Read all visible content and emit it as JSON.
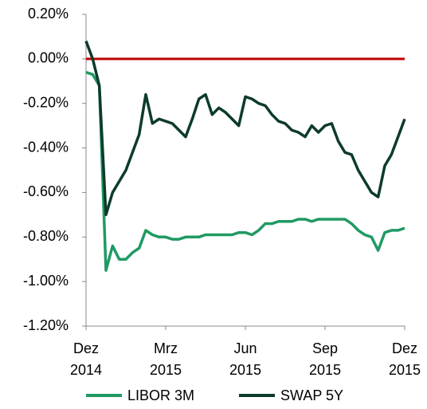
{
  "chart_data": {
    "type": "line",
    "x": [
      0,
      0.25,
      0.5,
      0.75,
      1,
      1.25,
      1.5,
      1.75,
      2,
      2.25,
      2.5,
      2.75,
      3,
      3.25,
      3.5,
      3.75,
      4,
      4.25,
      4.5,
      4.75,
      5,
      5.25,
      5.5,
      5.75,
      6,
      6.25,
      6.5,
      6.75,
      7,
      7.25,
      7.5,
      7.75,
      8,
      8.25,
      8.5,
      8.75,
      9,
      9.25,
      9.5,
      9.75,
      10,
      10.25,
      10.5,
      10.75,
      11,
      11.25,
      11.5,
      11.75,
      12
    ],
    "series": [
      {
        "name": "LIBOR 3M",
        "color": "#1f9a63",
        "values": [
          -0.06,
          -0.07,
          -0.12,
          -0.95,
          -0.84,
          -0.9,
          -0.9,
          -0.87,
          -0.85,
          -0.77,
          -0.79,
          -0.8,
          -0.8,
          -0.81,
          -0.81,
          -0.8,
          -0.8,
          -0.8,
          -0.79,
          -0.79,
          -0.79,
          -0.79,
          -0.79,
          -0.78,
          -0.78,
          -0.79,
          -0.77,
          -0.74,
          -0.74,
          -0.73,
          -0.73,
          -0.73,
          -0.72,
          -0.72,
          -0.73,
          -0.72,
          -0.72,
          -0.72,
          -0.72,
          -0.72,
          -0.74,
          -0.77,
          -0.79,
          -0.8,
          -0.86,
          -0.78,
          -0.77,
          -0.77,
          -0.76
        ]
      },
      {
        "name": "SWAP 5Y",
        "color": "#0d3b2a",
        "values": [
          0.08,
          0.0,
          -0.12,
          -0.7,
          -0.6,
          -0.55,
          -0.5,
          -0.42,
          -0.34,
          -0.16,
          -0.29,
          -0.27,
          -0.28,
          -0.29,
          -0.32,
          -0.35,
          -0.27,
          -0.18,
          -0.16,
          -0.25,
          -0.22,
          -0.24,
          -0.27,
          -0.3,
          -0.17,
          -0.18,
          -0.2,
          -0.21,
          -0.25,
          -0.28,
          -0.29,
          -0.32,
          -0.33,
          -0.35,
          -0.3,
          -0.33,
          -0.3,
          -0.29,
          -0.37,
          -0.42,
          -0.43,
          -0.5,
          -0.55,
          -0.6,
          -0.62,
          -0.48,
          -0.43,
          -0.35,
          -0.27
        ]
      }
    ],
    "xlim": [
      0,
      12
    ],
    "xticks": [
      {
        "value": 0,
        "label": "Dez 2014"
      },
      {
        "value": 3,
        "label": "Mrz 2015"
      },
      {
        "value": 6,
        "label": "Jun 2015"
      },
      {
        "value": 9,
        "label": "Sep 2015"
      },
      {
        "value": 12,
        "label": "Dez 2015"
      }
    ],
    "ylim": [
      -1.2,
      0.2
    ],
    "yticks": [
      {
        "value": 0.2,
        "label": "0.20%"
      },
      {
        "value": 0,
        "label": "0.00%"
      },
      {
        "value": -0.2,
        "label": "-0.20%"
      },
      {
        "value": -0.4,
        "label": "-0.40%"
      },
      {
        "value": -0.6,
        "label": "-0.60%"
      },
      {
        "value": -0.8,
        "label": "-0.80%"
      },
      {
        "value": -1.0,
        "label": "-1.00%"
      },
      {
        "value": -1.2,
        "label": "-1.20%"
      }
    ],
    "zero_line_color": "#c00000",
    "legend": "bottom"
  }
}
